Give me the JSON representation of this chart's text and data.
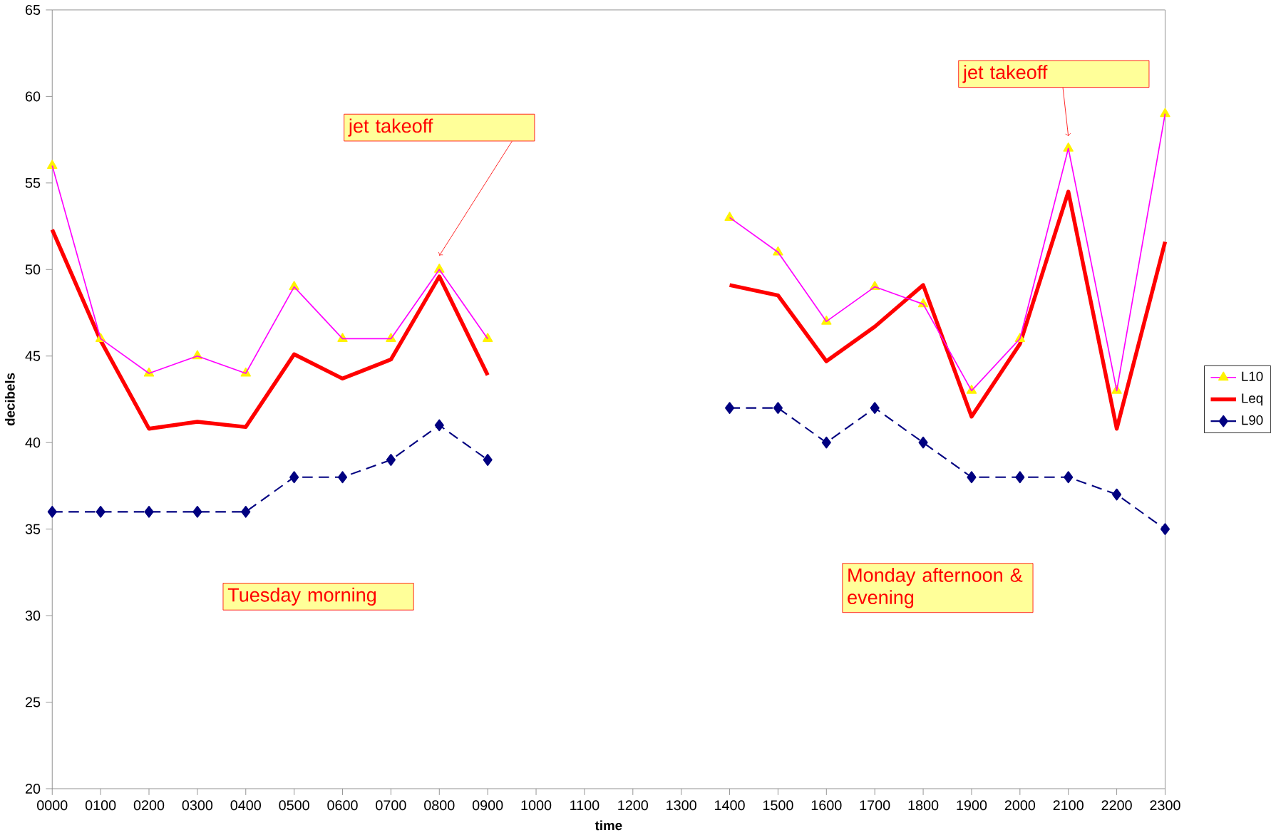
{
  "chart_data": {
    "type": "line",
    "xlabel": "time",
    "ylabel": "decibels",
    "categories": [
      "0000",
      "0100",
      "0200",
      "0300",
      "0400",
      "0500",
      "0600",
      "0700",
      "0800",
      "0900",
      "1000",
      "1100",
      "1200",
      "1300",
      "1400",
      "1500",
      "1600",
      "1700",
      "1800",
      "1900",
      "2000",
      "2100",
      "2200",
      "2300"
    ],
    "series": [
      {
        "name": "L10",
        "color": "#ff00ff",
        "marker": "triangle",
        "line_style": "solid",
        "values": [
          56,
          46,
          44,
          45,
          44,
          49,
          46,
          46,
          50,
          46,
          null,
          null,
          null,
          null,
          53,
          51,
          47,
          49,
          48,
          43,
          46,
          57,
          43,
          59
        ]
      },
      {
        "name": "Leq",
        "color": "#ff0000",
        "marker": "none",
        "line_style": "solid",
        "values": [
          52.3,
          45.9,
          40.8,
          41.2,
          40.9,
          45.1,
          43.7,
          44.8,
          49.6,
          43.9,
          null,
          null,
          null,
          null,
          49.1,
          48.5,
          44.7,
          46.7,
          49.1,
          41.5,
          45.7,
          54.5,
          40.8,
          51.6
        ]
      },
      {
        "name": "L90",
        "color": "#000080",
        "marker": "diamond",
        "line_style": "dashed",
        "values": [
          36,
          36,
          36,
          36,
          36,
          38,
          38,
          39,
          41,
          39,
          null,
          null,
          null,
          null,
          42,
          42,
          40,
          42,
          40,
          38,
          38,
          38,
          37,
          35
        ]
      }
    ],
    "ylim": [
      20,
      65
    ],
    "yticks": [
      20,
      25,
      30,
      35,
      40,
      45,
      50,
      55,
      60,
      65
    ],
    "grid": false,
    "legend": "right",
    "annotations": [
      "jet takeoff",
      "jet takeoff",
      "Tuesday morning",
      "Monday afternoon & evening"
    ]
  }
}
